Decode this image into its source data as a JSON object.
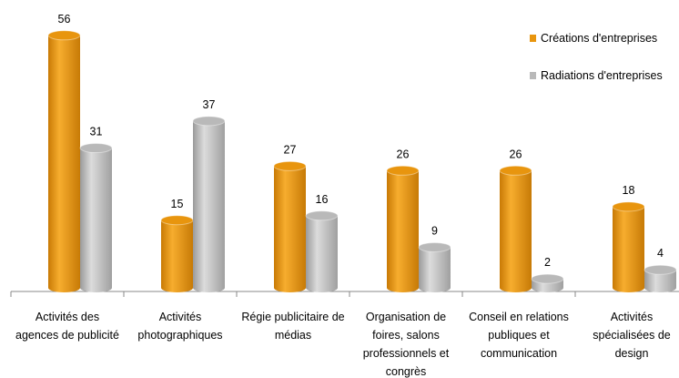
{
  "chart_data": {
    "type": "bar",
    "categories": [
      "Activités des agences de publicité",
      "Activités photographiques",
      "Régie publicitaire de médias",
      "Organisation de foires, salons professionnels et congrès",
      "Conseil en relations publiques et communication",
      "Activités spécialisées de design"
    ],
    "series": [
      {
        "name": "Créations d'entreprises",
        "color": "#e8950e",
        "values": [
          56,
          15,
          27,
          26,
          26,
          18
        ]
      },
      {
        "name": "Radiations d'entreprises",
        "color": "#b9b9b9",
        "values": [
          31,
          37,
          16,
          9,
          2,
          4
        ]
      }
    ],
    "legend": "right"
  }
}
